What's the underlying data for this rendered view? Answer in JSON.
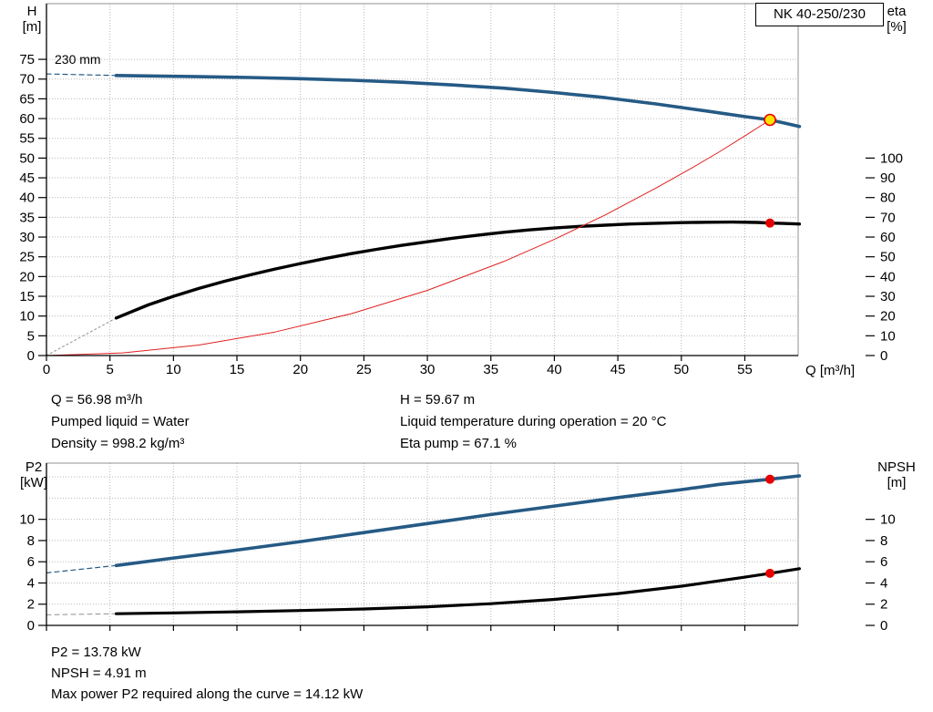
{
  "model_box": {
    "label": "NK 40-250/230"
  },
  "axes": {
    "top_left_title": "H",
    "top_left_unit": "[m]",
    "top_right_title": "eta",
    "top_right_unit": "[%]",
    "x_title": "Q [m³/h]",
    "bottom_left_title": "P2",
    "bottom_left_unit": "[kW]",
    "bottom_right_title": "NPSH",
    "bottom_right_unit": "[m]"
  },
  "annotations": {
    "impeller_diameter": "230 mm"
  },
  "info_top_left": [
    "Q = 56.98 m³/h",
    "Pumped liquid = Water",
    "Density = 998.2 kg/m³"
  ],
  "info_top_right": [
    "H = 59.67 m",
    "Liquid temperature during operation = 20 °C",
    "Eta pump = 67.1 %"
  ],
  "info_bottom": [
    "P2 = 13.78 kW",
    "NPSH = 4.91 m",
    "Max power P2 required along the curve = 14.12 kW"
  ],
  "colors": {
    "primary_curve": "#255a85",
    "secondary_curve": "#000000",
    "system_curve": "#e02020",
    "marker_red": "#e60000",
    "duty_fill": "#ffe200",
    "grid": "#b8b8b8",
    "lead_gray": "#909090",
    "border": "#909090",
    "axis": "#000000"
  },
  "chart_data": [
    {
      "type": "line",
      "id": "qh",
      "xlabel": "Q [m³/h]",
      "ylabel_left": "H [m]",
      "ylabel_right": "eta [%]",
      "xlim": [
        0,
        59.2
      ],
      "ylim_left": [
        0,
        89.1
      ],
      "ylim_right": [
        0,
        178.2
      ],
      "x_ticks": [
        0,
        5,
        10,
        15,
        20,
        25,
        30,
        35,
        40,
        45,
        50,
        55
      ],
      "y_ticks_left": [
        0,
        5,
        10,
        15,
        20,
        25,
        30,
        35,
        40,
        45,
        50,
        55,
        60,
        65,
        70,
        75
      ],
      "y_ticks_right": [
        0,
        10,
        20,
        30,
        40,
        50,
        60,
        70,
        80,
        90,
        100
      ],
      "series": [
        {
          "name": "head-curve-lead",
          "color": "#255a85",
          "width": 1.2,
          "dash": "5 4",
          "x": [
            0,
            5.5
          ],
          "y": [
            71.3,
            70.9
          ]
        },
        {
          "name": "head-curve",
          "color": "#255a85",
          "width": 3.6,
          "x": [
            5.5,
            8,
            12,
            16,
            20,
            24,
            28,
            32,
            36,
            40,
            44,
            48,
            52,
            55,
            56.98,
            58.2,
            59.3
          ],
          "y": [
            70.9,
            70.8,
            70.6,
            70.4,
            70.1,
            69.7,
            69.2,
            68.5,
            67.7,
            66.6,
            65.3,
            63.7,
            61.9,
            60.5,
            59.67,
            58.8,
            58.0
          ]
        },
        {
          "name": "eta-curve-lead",
          "color": "#909090",
          "width": 1,
          "dash": "2 3",
          "x": [
            0,
            5.5
          ],
          "y": [
            0,
            9.5
          ]
        },
        {
          "name": "eta-curve",
          "color": "#000000",
          "width": 3.4,
          "x": [
            5.5,
            8,
            10,
            12,
            14,
            16,
            18,
            20,
            22,
            24,
            26,
            28,
            30,
            32,
            34,
            36,
            38,
            40,
            42,
            44,
            46,
            48,
            50,
            52,
            54,
            56,
            56.98,
            58,
            59.3
          ],
          "y": [
            9.5,
            12.8,
            15.0,
            17.0,
            18.8,
            20.4,
            21.9,
            23.3,
            24.6,
            25.8,
            26.9,
            27.9,
            28.8,
            29.7,
            30.5,
            31.2,
            31.8,
            32.3,
            32.7,
            33.0,
            33.3,
            33.5,
            33.65,
            33.75,
            33.8,
            33.7,
            33.55,
            33.45,
            33.3
          ]
        },
        {
          "name": "system-curve",
          "color": "#e02020",
          "width": 1,
          "x": [
            0,
            6,
            12,
            18,
            24,
            30,
            36,
            40,
            44,
            48,
            51,
            53,
            55,
            56.98
          ],
          "y": [
            0,
            0.66,
            2.65,
            5.95,
            10.6,
            16.5,
            23.8,
            29.4,
            35.6,
            42.4,
            47.8,
            51.6,
            55.6,
            59.67
          ]
        }
      ],
      "markers": [
        {
          "name": "duty-point",
          "x": 56.98,
          "y": 59.67,
          "r": 6,
          "fill": "#ffe200",
          "stroke": "#e60000",
          "stroke_width": 1.6
        },
        {
          "name": "eta-operating-point",
          "x": 56.98,
          "y": 33.55,
          "r": 4.5,
          "fill": "#e60000",
          "stroke": "#e60000",
          "stroke_width": 1
        }
      ]
    },
    {
      "type": "line",
      "id": "p2",
      "xlabel": "",
      "ylabel_left": "P2 [kW]",
      "ylabel_right": "NPSH [m]",
      "xlim": [
        0,
        59.2
      ],
      "ylim_left": [
        0,
        15.3
      ],
      "ylim_right": [
        0,
        15.3
      ],
      "x_ticks": [
        0,
        5,
        10,
        15,
        20,
        25,
        30,
        35,
        40,
        45,
        50,
        55
      ],
      "x_tick_labels": false,
      "y_ticks_left": [
        0,
        2,
        4,
        6,
        8,
        10
      ],
      "y_grid": [
        2,
        4,
        6,
        8,
        10,
        12,
        14
      ],
      "y_ticks_right": [
        0,
        2,
        4,
        6,
        8,
        10
      ],
      "series": [
        {
          "name": "p2-curve-lead",
          "color": "#255a85",
          "width": 1.2,
          "dash": "5 4",
          "x": [
            0,
            5.5
          ],
          "y": [
            4.95,
            5.65
          ]
        },
        {
          "name": "p2-curve",
          "color": "#255a85",
          "width": 3.6,
          "x": [
            5.5,
            10,
            15,
            20,
            25,
            30,
            35,
            40,
            45,
            50,
            53,
            55,
            56.98,
            59.3
          ],
          "y": [
            5.65,
            6.35,
            7.1,
            7.9,
            8.75,
            9.6,
            10.45,
            11.25,
            12.05,
            12.8,
            13.3,
            13.55,
            13.78,
            14.1
          ]
        },
        {
          "name": "npsh-curve-lead",
          "color": "#909090",
          "width": 1,
          "dash": "5 4",
          "x": [
            0,
            5.5
          ],
          "y": [
            1.0,
            1.1
          ]
        },
        {
          "name": "npsh-curve",
          "color": "#000000",
          "width": 3.2,
          "x": [
            5.5,
            10,
            15,
            20,
            25,
            30,
            35,
            40,
            45,
            50,
            53,
            55,
            56.98,
            59.3
          ],
          "y": [
            1.1,
            1.18,
            1.28,
            1.4,
            1.55,
            1.75,
            2.05,
            2.45,
            3.0,
            3.7,
            4.2,
            4.55,
            4.91,
            5.35
          ]
        }
      ],
      "markers": [
        {
          "name": "p2-operating-point",
          "x": 56.98,
          "y": 13.78,
          "r": 4.5,
          "fill": "#e60000",
          "stroke": "#e60000",
          "stroke_width": 1
        },
        {
          "name": "npsh-operating-point",
          "x": 56.98,
          "y": 4.91,
          "r": 4.5,
          "fill": "#e60000",
          "stroke": "#e60000",
          "stroke_width": 1
        }
      ]
    }
  ]
}
